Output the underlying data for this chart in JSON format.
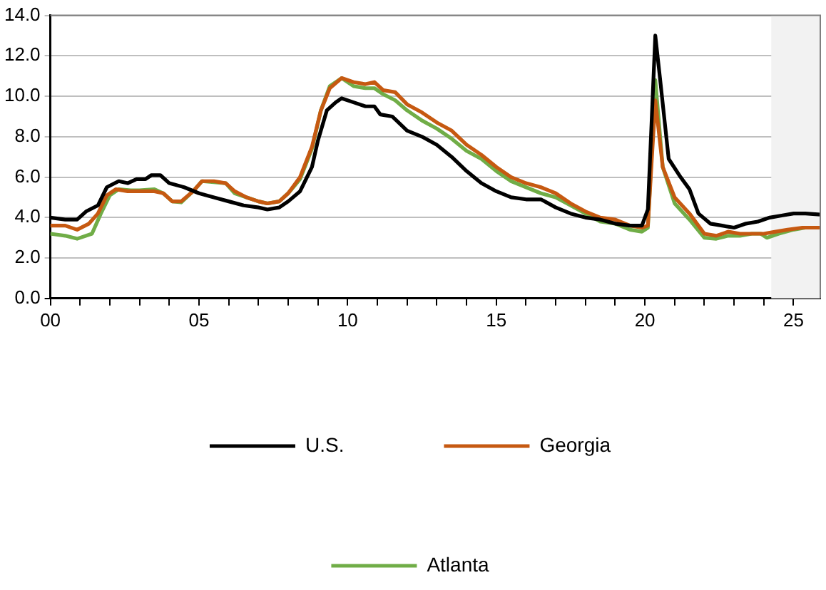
{
  "chart_data": {
    "type": "line",
    "xlim": [
      0,
      25.9
    ],
    "ylim": [
      0,
      14
    ],
    "xticks": [
      {
        "value": 0,
        "label": "00"
      },
      {
        "value": 1,
        "label": null
      },
      {
        "value": 2,
        "label": null
      },
      {
        "value": 3,
        "label": null
      },
      {
        "value": 4,
        "label": null
      },
      {
        "value": 5,
        "label": "05"
      },
      {
        "value": 6,
        "label": null
      },
      {
        "value": 7,
        "label": null
      },
      {
        "value": 8,
        "label": null
      },
      {
        "value": 9,
        "label": null
      },
      {
        "value": 10,
        "label": "10"
      },
      {
        "value": 11,
        "label": null
      },
      {
        "value": 12,
        "label": null
      },
      {
        "value": 13,
        "label": null
      },
      {
        "value": 14,
        "label": null
      },
      {
        "value": 15,
        "label": "15"
      },
      {
        "value": 16,
        "label": null
      },
      {
        "value": 17,
        "label": null
      },
      {
        "value": 18,
        "label": null
      },
      {
        "value": 19,
        "label": null
      },
      {
        "value": 20,
        "label": "20"
      },
      {
        "value": 21,
        "label": null
      },
      {
        "value": 22,
        "label": null
      },
      {
        "value": 23,
        "label": null
      },
      {
        "value": 24,
        "label": null
      },
      {
        "value": 25,
        "label": "25"
      }
    ],
    "yticks": [
      {
        "value": 0,
        "label": "0.0"
      },
      {
        "value": 2,
        "label": "2.0"
      },
      {
        "value": 4,
        "label": "4.0"
      },
      {
        "value": 6,
        "label": "6.0"
      },
      {
        "value": 8,
        "label": "8.0"
      },
      {
        "value": 10,
        "label": "10.0"
      },
      {
        "value": 12,
        "label": "12.0"
      },
      {
        "value": 14,
        "label": "14.0"
      }
    ],
    "grid": "y",
    "legend": "bottom",
    "marker": "none",
    "line_style": "solid",
    "bands": [
      {
        "axis": "x",
        "from": 24.25,
        "to": 25.9,
        "color": "#f2f2f2"
      }
    ],
    "series": [
      {
        "name": "U.S.",
        "color": "#000000",
        "x": [
          0,
          0.5,
          0.9,
          1.2,
          1.6,
          1.9,
          2.3,
          2.6,
          2.9,
          3.2,
          3.4,
          3.7,
          4.0,
          4.5,
          5.0,
          5.5,
          6.0,
          6.5,
          7.0,
          7.3,
          7.7,
          8.0,
          8.4,
          8.8,
          9.0,
          9.3,
          9.6,
          9.8,
          10.2,
          10.6,
          10.9,
          11.1,
          11.5,
          12.0,
          12.5,
          13.0,
          13.5,
          14.0,
          14.5,
          15.0,
          15.5,
          16.0,
          16.5,
          17.0,
          17.5,
          18.0,
          18.5,
          19.0,
          19.5,
          19.9,
          20.1,
          20.35,
          20.5,
          20.8,
          21.2,
          21.5,
          21.8,
          22.2,
          22.6,
          23.0,
          23.4,
          23.8,
          24.2,
          24.6,
          25.0,
          25.4,
          25.9
        ],
        "values": [
          4.0,
          3.9,
          3.9,
          4.3,
          4.6,
          5.5,
          5.8,
          5.7,
          5.9,
          5.9,
          6.1,
          6.1,
          5.7,
          5.5,
          5.2,
          5.0,
          4.8,
          4.6,
          4.5,
          4.4,
          4.5,
          4.8,
          5.3,
          6.5,
          7.8,
          9.3,
          9.7,
          9.9,
          9.7,
          9.5,
          9.5,
          9.1,
          9.0,
          8.3,
          8.0,
          7.6,
          7.0,
          6.3,
          5.7,
          5.3,
          5.0,
          4.9,
          4.9,
          4.5,
          4.2,
          4.0,
          3.9,
          3.7,
          3.6,
          3.6,
          4.4,
          13.0,
          11.0,
          6.9,
          6.0,
          5.4,
          4.2,
          3.7,
          3.6,
          3.5,
          3.7,
          3.8,
          4.0,
          4.1,
          4.2,
          4.2,
          4.15
        ]
      },
      {
        "name": "Georgia",
        "color": "#c65911",
        "x": [
          0,
          0.5,
          0.9,
          1.3,
          1.6,
          1.9,
          2.2,
          2.6,
          3.0,
          3.5,
          3.8,
          4.1,
          4.4,
          4.8,
          5.1,
          5.5,
          5.9,
          6.2,
          6.6,
          7.0,
          7.3,
          7.7,
          8.0,
          8.4,
          8.8,
          9.1,
          9.4,
          9.8,
          10.2,
          10.6,
          10.9,
          11.2,
          11.6,
          12.0,
          12.5,
          13.0,
          13.5,
          14.0,
          14.5,
          15.0,
          15.5,
          16.0,
          16.5,
          17.0,
          17.5,
          18.0,
          18.5,
          19.0,
          19.5,
          19.9,
          20.1,
          20.35,
          20.6,
          21.0,
          21.5,
          22.0,
          22.4,
          22.8,
          23.2,
          23.6,
          24.0,
          24.4,
          24.8,
          25.3,
          25.9
        ],
        "values": [
          3.6,
          3.6,
          3.4,
          3.7,
          4.2,
          5.1,
          5.4,
          5.3,
          5.3,
          5.3,
          5.2,
          4.8,
          4.8,
          5.3,
          5.8,
          5.8,
          5.7,
          5.3,
          5.0,
          4.8,
          4.7,
          4.8,
          5.2,
          6.0,
          7.5,
          9.3,
          10.4,
          10.9,
          10.7,
          10.6,
          10.7,
          10.3,
          10.2,
          9.6,
          9.2,
          8.7,
          8.3,
          7.6,
          7.1,
          6.5,
          6.0,
          5.7,
          5.5,
          5.2,
          4.7,
          4.3,
          4.0,
          3.9,
          3.6,
          3.5,
          3.6,
          9.8,
          6.5,
          5.0,
          4.2,
          3.2,
          3.1,
          3.3,
          3.2,
          3.2,
          3.2,
          3.3,
          3.4,
          3.5,
          3.5
        ]
      },
      {
        "name": "Atlanta",
        "color": "#70ad47",
        "x": [
          0,
          0.5,
          0.9,
          1.4,
          1.7,
          2.0,
          2.3,
          2.7,
          3.0,
          3.5,
          3.8,
          4.1,
          4.4,
          4.8,
          5.1,
          5.5,
          5.9,
          6.2,
          6.6,
          7.0,
          7.3,
          7.7,
          8.0,
          8.4,
          8.8,
          9.1,
          9.4,
          9.8,
          10.2,
          10.6,
          10.9,
          11.2,
          11.6,
          12.0,
          12.5,
          13.0,
          13.5,
          14.0,
          14.5,
          15.0,
          15.5,
          16.0,
          16.5,
          17.0,
          17.5,
          18.0,
          18.5,
          19.0,
          19.5,
          19.9,
          20.1,
          20.35,
          20.6,
          21.0,
          21.5,
          22.0,
          22.4,
          22.8,
          23.2,
          23.6,
          23.9,
          24.1,
          24.5,
          25.0,
          25.4,
          25.9
        ],
        "values": [
          3.2,
          3.1,
          2.95,
          3.2,
          4.2,
          5.1,
          5.4,
          5.35,
          5.35,
          5.4,
          5.2,
          4.8,
          4.75,
          5.3,
          5.8,
          5.75,
          5.7,
          5.2,
          5.0,
          4.8,
          4.7,
          4.8,
          5.2,
          5.9,
          7.4,
          9.3,
          10.5,
          10.9,
          10.5,
          10.4,
          10.4,
          10.1,
          9.8,
          9.3,
          8.8,
          8.4,
          7.9,
          7.3,
          6.9,
          6.3,
          5.8,
          5.5,
          5.2,
          5.0,
          4.6,
          4.2,
          3.8,
          3.7,
          3.4,
          3.3,
          3.5,
          10.8,
          6.5,
          4.7,
          3.9,
          3.0,
          2.95,
          3.1,
          3.1,
          3.2,
          3.2,
          3.0,
          3.2,
          3.4,
          3.5,
          3.5
        ]
      }
    ]
  }
}
